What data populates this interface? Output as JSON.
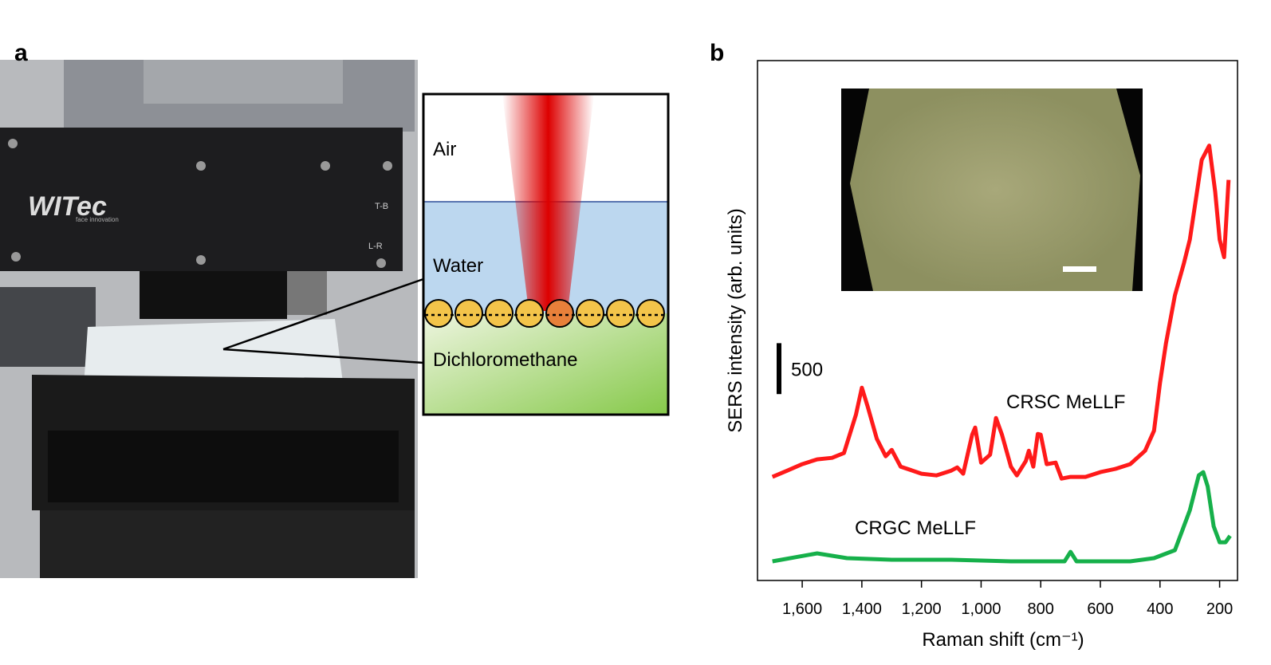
{
  "panel_a": {
    "label": "a",
    "brand": "WITec",
    "brand_sub": "face innovation",
    "knob_top": "T-B",
    "knob_bottom": "L-R",
    "layers": [
      "Air",
      "Water",
      "Dichloromethane"
    ]
  },
  "chart_data": {
    "type": "line",
    "panel_label": "b",
    "x_label": "Raman shift (cm⁻¹)",
    "y_label": "SERS intensity (arb. units)",
    "xlim": [
      1750,
      140
    ],
    "ylim": [
      0,
      5100
    ],
    "xticks": [
      {
        "value": 1600,
        "label": "1,600"
      },
      {
        "value": 1400,
        "label": "1,400"
      },
      {
        "value": 1200,
        "label": "1,200"
      },
      {
        "value": 1000,
        "label": "1,000"
      },
      800,
      600,
      400,
      200
    ],
    "scale_bar": 500,
    "series": [
      {
        "name": "CRSC MeLLF",
        "color": "#ff1a1a",
        "x": [
          1700,
          1650,
          1600,
          1550,
          1500,
          1460,
          1420,
          1400,
          1380,
          1350,
          1320,
          1300,
          1270,
          1230,
          1200,
          1150,
          1100,
          1080,
          1060,
          1030,
          1020,
          1000,
          970,
          950,
          930,
          900,
          880,
          850,
          840,
          825,
          810,
          800,
          780,
          750,
          730,
          700,
          650,
          600,
          550,
          500,
          450,
          420,
          400,
          380,
          350,
          320,
          300,
          280,
          260,
          235,
          215,
          200,
          185,
          170
        ],
        "values": [
          1016,
          1078,
          1141,
          1188,
          1203,
          1250,
          1625,
          1891,
          1703,
          1391,
          1219,
          1281,
          1117,
          1078,
          1047,
          1031,
          1078,
          1109,
          1047,
          1430,
          1500,
          1156,
          1234,
          1594,
          1430,
          1117,
          1031,
          1172,
          1273,
          1117,
          1438,
          1430,
          1141,
          1156,
          1000,
          1016,
          1016,
          1063,
          1094,
          1141,
          1273,
          1469,
          1938,
          2328,
          2797,
          3109,
          3344,
          3734,
          4125,
          4266,
          3813,
          3344,
          3172,
          3930
        ]
      },
      {
        "name": "CRGC MeLLF",
        "color": "#16b04a",
        "x": [
          1700,
          1550,
          1450,
          1300,
          1100,
          900,
          720,
          700,
          680,
          500,
          420,
          350,
          300,
          270,
          255,
          240,
          220,
          200,
          180,
          165
        ],
        "values": [
          188,
          266,
          219,
          203,
          203,
          188,
          188,
          281,
          188,
          188,
          219,
          297,
          688,
          1031,
          1063,
          922,
          531,
          375,
          375,
          438
        ]
      }
    ]
  }
}
